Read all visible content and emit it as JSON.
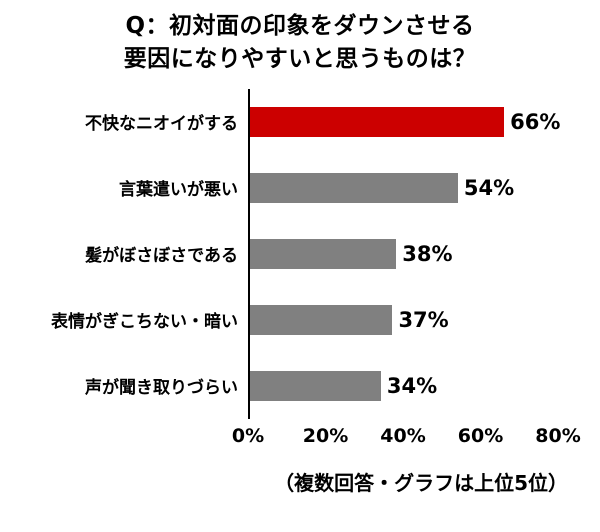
{
  "title": {
    "line1": "Q：初対面の印象をダウンさせる",
    "line2": "要因になりやすいと思うものは？"
  },
  "footer_note": "（複数回答・グラフは上位5位）",
  "chart_data": {
    "type": "bar",
    "orientation": "horizontal",
    "title": "Q：初対面の印象をダウンさせる 要因になりやすいと思うものは？",
    "note": "（複数回答・グラフは上位5位）",
    "categories": [
      "不快なニオイがする",
      "言葉遣いが悪い",
      "髪がぼさぼさである",
      "表情がぎこちない・暗い",
      "声が聞き取りづらい"
    ],
    "values": [
      66,
      54,
      38,
      37,
      34
    ],
    "value_labels": [
      "66%",
      "54%",
      "38%",
      "37%",
      "34%"
    ],
    "bar_colors": [
      "#CC0000",
      "#808080",
      "#808080",
      "#808080",
      "#808080"
    ],
    "xlim": [
      0,
      80
    ],
    "x_ticks": [
      {
        "label": "0%",
        "value": 0
      },
      {
        "label": "20%",
        "value": 20
      },
      {
        "label": "40%",
        "value": 40
      },
      {
        "label": "60%",
        "value": 60
      },
      {
        "label": "80%",
        "value": 80
      }
    ],
    "grid": false,
    "legend": false
  }
}
